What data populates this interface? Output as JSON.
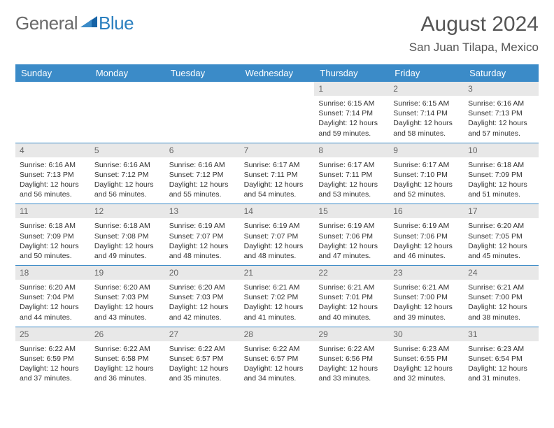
{
  "brand": {
    "part1": "General",
    "part2": "Blue"
  },
  "title": "August 2024",
  "location": "San Juan Tilapa, Mexico",
  "day_headers": [
    "Sunday",
    "Monday",
    "Tuesday",
    "Wednesday",
    "Thursday",
    "Friday",
    "Saturday"
  ],
  "colors": {
    "header_bg": "#3b8bc8",
    "daynum_bg": "#e8e8e8",
    "rule": "#3b8bc8",
    "logo_gray": "#6a6a6a",
    "logo_blue": "#2a7fbf",
    "text": "#333333"
  },
  "typography": {
    "title_size": 30,
    "location_size": 17,
    "header_size": 13,
    "daynum_size": 12,
    "body_size": 10.5
  },
  "layout": {
    "cols": 7,
    "rows": 5,
    "cell_min_height": 86
  },
  "weeks": [
    [
      {
        "day": "",
        "lines": []
      },
      {
        "day": "",
        "lines": []
      },
      {
        "day": "",
        "lines": []
      },
      {
        "day": "",
        "lines": []
      },
      {
        "day": "1",
        "lines": [
          "Sunrise: 6:15 AM",
          "Sunset: 7:14 PM",
          "Daylight: 12 hours",
          "and 59 minutes."
        ]
      },
      {
        "day": "2",
        "lines": [
          "Sunrise: 6:15 AM",
          "Sunset: 7:14 PM",
          "Daylight: 12 hours",
          "and 58 minutes."
        ]
      },
      {
        "day": "3",
        "lines": [
          "Sunrise: 6:16 AM",
          "Sunset: 7:13 PM",
          "Daylight: 12 hours",
          "and 57 minutes."
        ]
      }
    ],
    [
      {
        "day": "4",
        "lines": [
          "Sunrise: 6:16 AM",
          "Sunset: 7:13 PM",
          "Daylight: 12 hours",
          "and 56 minutes."
        ]
      },
      {
        "day": "5",
        "lines": [
          "Sunrise: 6:16 AM",
          "Sunset: 7:12 PM",
          "Daylight: 12 hours",
          "and 56 minutes."
        ]
      },
      {
        "day": "6",
        "lines": [
          "Sunrise: 6:16 AM",
          "Sunset: 7:12 PM",
          "Daylight: 12 hours",
          "and 55 minutes."
        ]
      },
      {
        "day": "7",
        "lines": [
          "Sunrise: 6:17 AM",
          "Sunset: 7:11 PM",
          "Daylight: 12 hours",
          "and 54 minutes."
        ]
      },
      {
        "day": "8",
        "lines": [
          "Sunrise: 6:17 AM",
          "Sunset: 7:11 PM",
          "Daylight: 12 hours",
          "and 53 minutes."
        ]
      },
      {
        "day": "9",
        "lines": [
          "Sunrise: 6:17 AM",
          "Sunset: 7:10 PM",
          "Daylight: 12 hours",
          "and 52 minutes."
        ]
      },
      {
        "day": "10",
        "lines": [
          "Sunrise: 6:18 AM",
          "Sunset: 7:09 PM",
          "Daylight: 12 hours",
          "and 51 minutes."
        ]
      }
    ],
    [
      {
        "day": "11",
        "lines": [
          "Sunrise: 6:18 AM",
          "Sunset: 7:09 PM",
          "Daylight: 12 hours",
          "and 50 minutes."
        ]
      },
      {
        "day": "12",
        "lines": [
          "Sunrise: 6:18 AM",
          "Sunset: 7:08 PM",
          "Daylight: 12 hours",
          "and 49 minutes."
        ]
      },
      {
        "day": "13",
        "lines": [
          "Sunrise: 6:19 AM",
          "Sunset: 7:07 PM",
          "Daylight: 12 hours",
          "and 48 minutes."
        ]
      },
      {
        "day": "14",
        "lines": [
          "Sunrise: 6:19 AM",
          "Sunset: 7:07 PM",
          "Daylight: 12 hours",
          "and 48 minutes."
        ]
      },
      {
        "day": "15",
        "lines": [
          "Sunrise: 6:19 AM",
          "Sunset: 7:06 PM",
          "Daylight: 12 hours",
          "and 47 minutes."
        ]
      },
      {
        "day": "16",
        "lines": [
          "Sunrise: 6:19 AM",
          "Sunset: 7:06 PM",
          "Daylight: 12 hours",
          "and 46 minutes."
        ]
      },
      {
        "day": "17",
        "lines": [
          "Sunrise: 6:20 AM",
          "Sunset: 7:05 PM",
          "Daylight: 12 hours",
          "and 45 minutes."
        ]
      }
    ],
    [
      {
        "day": "18",
        "lines": [
          "Sunrise: 6:20 AM",
          "Sunset: 7:04 PM",
          "Daylight: 12 hours",
          "and 44 minutes."
        ]
      },
      {
        "day": "19",
        "lines": [
          "Sunrise: 6:20 AM",
          "Sunset: 7:03 PM",
          "Daylight: 12 hours",
          "and 43 minutes."
        ]
      },
      {
        "day": "20",
        "lines": [
          "Sunrise: 6:20 AM",
          "Sunset: 7:03 PM",
          "Daylight: 12 hours",
          "and 42 minutes."
        ]
      },
      {
        "day": "21",
        "lines": [
          "Sunrise: 6:21 AM",
          "Sunset: 7:02 PM",
          "Daylight: 12 hours",
          "and 41 minutes."
        ]
      },
      {
        "day": "22",
        "lines": [
          "Sunrise: 6:21 AM",
          "Sunset: 7:01 PM",
          "Daylight: 12 hours",
          "and 40 minutes."
        ]
      },
      {
        "day": "23",
        "lines": [
          "Sunrise: 6:21 AM",
          "Sunset: 7:00 PM",
          "Daylight: 12 hours",
          "and 39 minutes."
        ]
      },
      {
        "day": "24",
        "lines": [
          "Sunrise: 6:21 AM",
          "Sunset: 7:00 PM",
          "Daylight: 12 hours",
          "and 38 minutes."
        ]
      }
    ],
    [
      {
        "day": "25",
        "lines": [
          "Sunrise: 6:22 AM",
          "Sunset: 6:59 PM",
          "Daylight: 12 hours",
          "and 37 minutes."
        ]
      },
      {
        "day": "26",
        "lines": [
          "Sunrise: 6:22 AM",
          "Sunset: 6:58 PM",
          "Daylight: 12 hours",
          "and 36 minutes."
        ]
      },
      {
        "day": "27",
        "lines": [
          "Sunrise: 6:22 AM",
          "Sunset: 6:57 PM",
          "Daylight: 12 hours",
          "and 35 minutes."
        ]
      },
      {
        "day": "28",
        "lines": [
          "Sunrise: 6:22 AM",
          "Sunset: 6:57 PM",
          "Daylight: 12 hours",
          "and 34 minutes."
        ]
      },
      {
        "day": "29",
        "lines": [
          "Sunrise: 6:22 AM",
          "Sunset: 6:56 PM",
          "Daylight: 12 hours",
          "and 33 minutes."
        ]
      },
      {
        "day": "30",
        "lines": [
          "Sunrise: 6:23 AM",
          "Sunset: 6:55 PM",
          "Daylight: 12 hours",
          "and 32 minutes."
        ]
      },
      {
        "day": "31",
        "lines": [
          "Sunrise: 6:23 AM",
          "Sunset: 6:54 PM",
          "Daylight: 12 hours",
          "and 31 minutes."
        ]
      }
    ]
  ]
}
